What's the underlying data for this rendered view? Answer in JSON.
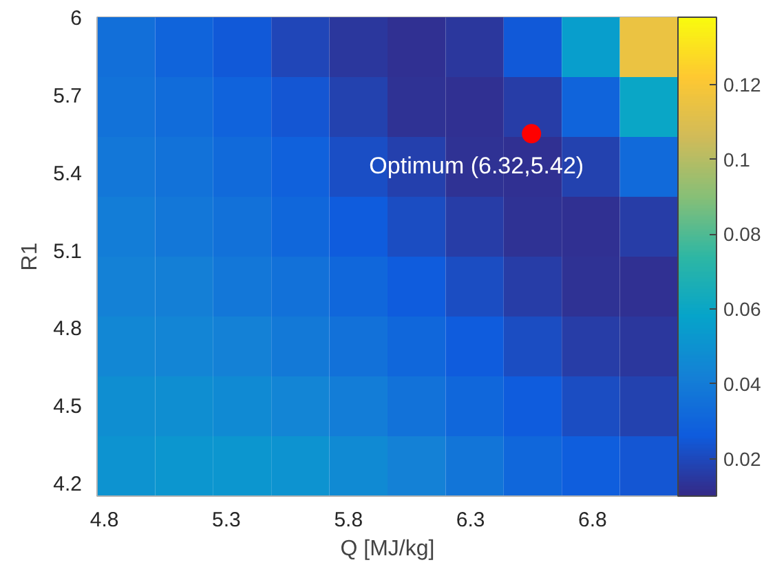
{
  "chart_data": {
    "type": "heatmap",
    "xlabel": "Q [MJ/kg]",
    "ylabel": "R1",
    "xlim": [
      4.77,
      7.15
    ],
    "ylim": [
      4.15,
      6.0
    ],
    "xticks": [
      4.8,
      5.3,
      5.8,
      6.3,
      6.8
    ],
    "yticks": [
      4.2,
      4.5,
      4.8,
      5.1,
      5.4,
      5.7,
      6
    ],
    "clim": [
      0.01,
      0.138
    ],
    "cticks": [
      0.02,
      0.04,
      0.06,
      0.08,
      0.1,
      0.12
    ],
    "cells": [
      [
        0.034,
        0.03,
        0.025,
        0.019,
        0.014,
        0.012,
        0.014,
        0.025,
        0.055,
        0.115
      ],
      [
        0.036,
        0.033,
        0.029,
        0.024,
        0.018,
        0.013,
        0.012,
        0.016,
        0.03,
        0.06
      ],
      [
        0.038,
        0.036,
        0.032,
        0.028,
        0.022,
        0.017,
        0.013,
        0.012,
        0.018,
        0.032
      ],
      [
        0.04,
        0.038,
        0.035,
        0.031,
        0.026,
        0.021,
        0.016,
        0.013,
        0.012,
        0.016
      ],
      [
        0.042,
        0.041,
        0.038,
        0.035,
        0.031,
        0.026,
        0.021,
        0.016,
        0.013,
        0.012
      ],
      [
        0.045,
        0.044,
        0.042,
        0.039,
        0.035,
        0.031,
        0.026,
        0.021,
        0.016,
        0.014
      ],
      [
        0.048,
        0.048,
        0.046,
        0.044,
        0.04,
        0.036,
        0.031,
        0.026,
        0.021,
        0.018
      ],
      [
        0.05,
        0.052,
        0.052,
        0.05,
        0.046,
        0.042,
        0.037,
        0.031,
        0.027,
        0.024
      ]
    ],
    "series": [
      {
        "type": "scatter",
        "x": [
          6.55
        ],
        "values": [
          5.55
        ],
        "color": "#ff0000"
      }
    ],
    "marker": "circle",
    "annotations": [
      {
        "text": "Optimum (6.32,5.42)",
        "x": 6.55,
        "y": 5.55
      }
    ]
  }
}
